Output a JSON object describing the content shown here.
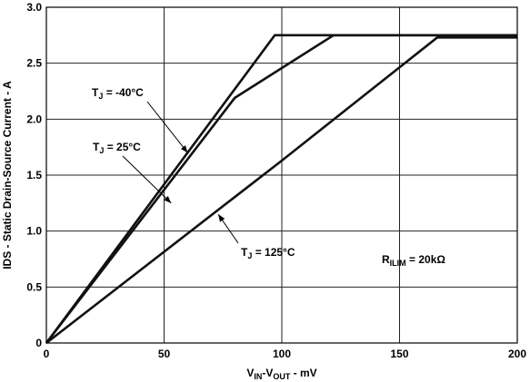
{
  "chart_data": {
    "type": "line",
    "xlabel": {
      "main": "V",
      "sub1": "IN",
      "mid": "-V",
      "sub2": "OUT",
      "tail": " - mV"
    },
    "ylabel": "IDS - Static Drain-Source Current - A",
    "xlim": [
      0,
      200
    ],
    "ylim": [
      0,
      3.0
    ],
    "x_ticks": [
      0,
      50,
      100,
      150,
      200
    ],
    "x_tick_labels": [
      "0",
      "50",
      "100",
      "150",
      "200"
    ],
    "y_ticks": [
      0,
      0.5,
      1.0,
      1.5,
      2.0,
      2.5,
      3.0
    ],
    "y_tick_labels": [
      "0",
      "0.5",
      "1.0",
      "1.5",
      "2.0",
      "2.5",
      "3.0"
    ],
    "grid": true,
    "series": [
      {
        "name": "T_J = -40°C",
        "x": [
          0,
          97,
          200
        ],
        "y": [
          0,
          2.75,
          2.75
        ]
      },
      {
        "name": "T_J = 25°C",
        "x": [
          0,
          80,
          122,
          200
        ],
        "y": [
          0,
          2.19,
          2.75,
          2.75
        ]
      },
      {
        "name": "T_J = 125°C",
        "x": [
          0,
          100,
          166,
          200
        ],
        "y": [
          0,
          1.63,
          2.73,
          2.73
        ]
      }
    ],
    "annotations": [
      {
        "main": "T",
        "sub": "J",
        "tail": " = -40°C",
        "series": 0,
        "arrow_at": [
          60,
          1.7
        ]
      },
      {
        "main": "T",
        "sub": "J",
        "tail": " = 25°C",
        "series": 1,
        "arrow_at": [
          53,
          1.25
        ]
      },
      {
        "main": "T",
        "sub": "J",
        "tail": " = 125°C",
        "series": 2,
        "arrow_at": [
          73,
          1.15
        ]
      },
      {
        "main": "R",
        "sub": "ILIM",
        "tail": " = 20kΩ"
      }
    ]
  }
}
